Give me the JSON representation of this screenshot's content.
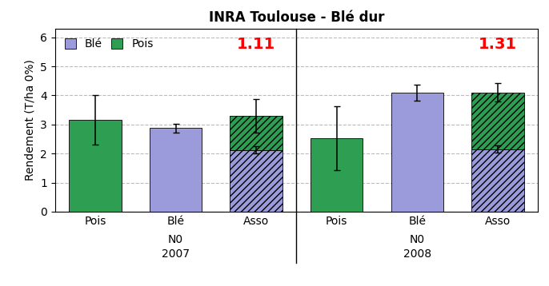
{
  "chart_data": {
    "type": "bar",
    "title": "INRA Toulouse - Blé dur",
    "y_label": "Rendement (T/ha 0%)",
    "categories": [
      "Pois",
      "Blé",
      "Asso",
      "Pois",
      "Blé",
      "Asso"
    ],
    "groups": [
      {
        "labels": [
          "N0",
          "2007"
        ],
        "size": 3
      },
      {
        "labels": [
          "N0",
          "2008"
        ],
        "size": 3
      }
    ],
    "series": [
      {
        "name": "Blé",
        "color": "#9b9bdb",
        "values": [
          null,
          2.88,
          2.12,
          null,
          4.1,
          2.15
        ],
        "errors": [
          null,
          0.15,
          0.12,
          null,
          0.28,
          0.12
        ]
      },
      {
        "name": "Pois",
        "color": "#2e9e52",
        "values": [
          3.15,
          null,
          1.18,
          2.52,
          null,
          1.95
        ],
        "errors": [
          0.85,
          null,
          0.58,
          1.1,
          null,
          0.32
        ]
      }
    ],
    "stacked": true,
    "annotations": [
      {
        "text": "1.11",
        "x": 2,
        "y": 5.75,
        "color": "red"
      },
      {
        "text": "1.31",
        "x": 5,
        "y": 5.75,
        "color": "red"
      }
    ],
    "ylim": [
      0,
      6.3
    ],
    "yticks": [
      0,
      1,
      2,
      3,
      4,
      5,
      6
    ],
    "grid": true,
    "legend": "upper left"
  }
}
